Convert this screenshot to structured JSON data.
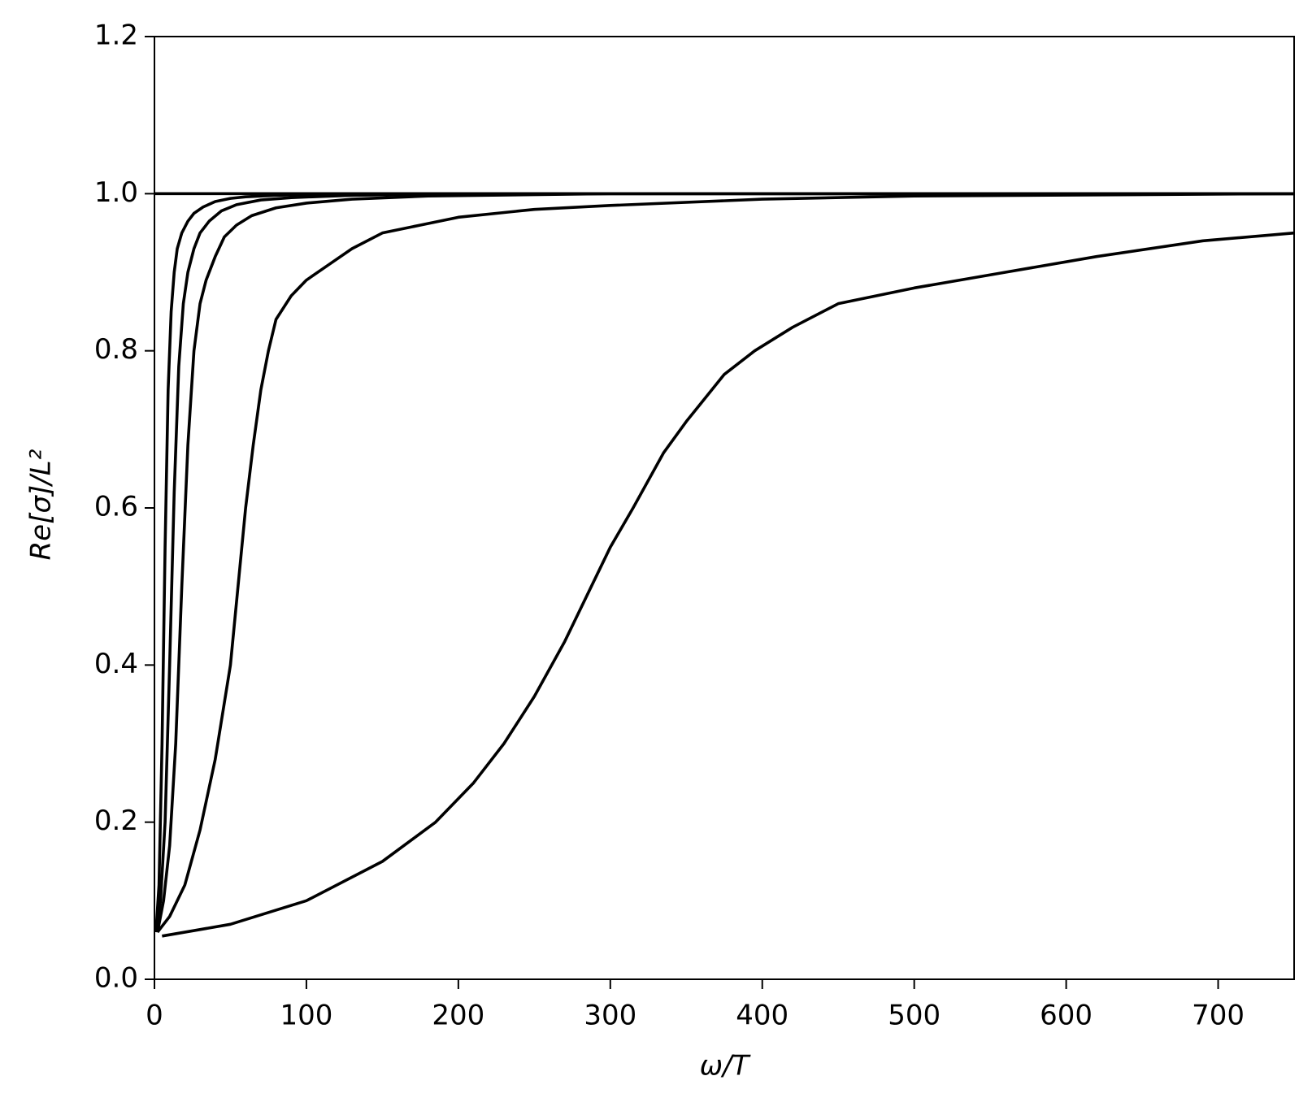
{
  "chart_data": {
    "type": "line",
    "xlabel": "ω/T",
    "ylabel": "Re[σ]/L²",
    "xlim": [
      0,
      750
    ],
    "xticks": [
      0,
      100,
      200,
      300,
      400,
      500,
      600,
      700
    ],
    "ylim": [
      0,
      1.2
    ],
    "yticks": [
      {
        "value": 0,
        "label": "0.0"
      },
      0.2,
      0.4,
      0.6,
      0.8,
      {
        "value": 1,
        "label": "1.0"
      },
      1.2
    ],
    "grid": false,
    "series": [
      {
        "color": "#000000",
        "x": [
          0,
          750
        ],
        "values": [
          1,
          1
        ]
      },
      {
        "color": "#000000",
        "x": [
          1,
          3,
          5,
          7,
          9,
          11,
          13,
          15,
          18,
          22,
          26,
          32,
          40,
          50,
          60,
          80,
          120,
          750
        ],
        "values": [
          0.06,
          0.12,
          0.3,
          0.55,
          0.75,
          0.85,
          0.9,
          0.93,
          0.95,
          0.965,
          0.975,
          0.983,
          0.99,
          0.994,
          0.996,
          0.998,
          1,
          1
        ]
      },
      {
        "color": "#000000",
        "x": [
          1,
          4,
          7,
          10,
          13,
          16,
          19,
          22,
          26,
          30,
          36,
          44,
          54,
          70,
          90,
          130,
          200,
          750
        ],
        "values": [
          0.06,
          0.1,
          0.2,
          0.4,
          0.62,
          0.78,
          0.86,
          0.9,
          0.93,
          0.95,
          0.965,
          0.978,
          0.986,
          0.992,
          0.995,
          0.998,
          1,
          1
        ]
      },
      {
        "color": "#000000",
        "x": [
          2,
          6,
          10,
          14,
          18,
          22,
          26,
          30,
          34,
          40,
          46,
          54,
          64,
          80,
          100,
          130,
          180,
          300,
          750
        ],
        "values": [
          0.06,
          0.1,
          0.17,
          0.3,
          0.5,
          0.68,
          0.8,
          0.86,
          0.89,
          0.92,
          0.945,
          0.96,
          0.972,
          0.982,
          0.988,
          0.993,
          0.997,
          1,
          1
        ]
      },
      {
        "color": "#000000",
        "x": [
          2,
          10,
          20,
          30,
          40,
          50,
          55,
          60,
          65,
          70,
          75,
          80,
          90,
          100,
          115,
          130,
          150,
          175,
          200,
          250,
          300,
          400,
          500,
          750
        ],
        "values": [
          0.06,
          0.08,
          0.12,
          0.19,
          0.28,
          0.4,
          0.5,
          0.6,
          0.68,
          0.75,
          0.8,
          0.84,
          0.87,
          0.89,
          0.91,
          0.93,
          0.95,
          0.96,
          0.97,
          0.98,
          0.985,
          0.993,
          0.997,
          1
        ]
      },
      {
        "color": "#000000",
        "x": [
          5,
          50,
          100,
          150,
          185,
          210,
          230,
          250,
          270,
          285,
          300,
          315,
          335,
          350,
          375,
          395,
          420,
          450,
          500,
          560,
          620,
          690,
          750
        ],
        "values": [
          0.055,
          0.07,
          0.1,
          0.15,
          0.2,
          0.25,
          0.3,
          0.36,
          0.43,
          0.49,
          0.55,
          0.6,
          0.67,
          0.71,
          0.77,
          0.8,
          0.83,
          0.86,
          0.88,
          0.9,
          0.92,
          0.94,
          0.95
        ]
      }
    ]
  }
}
